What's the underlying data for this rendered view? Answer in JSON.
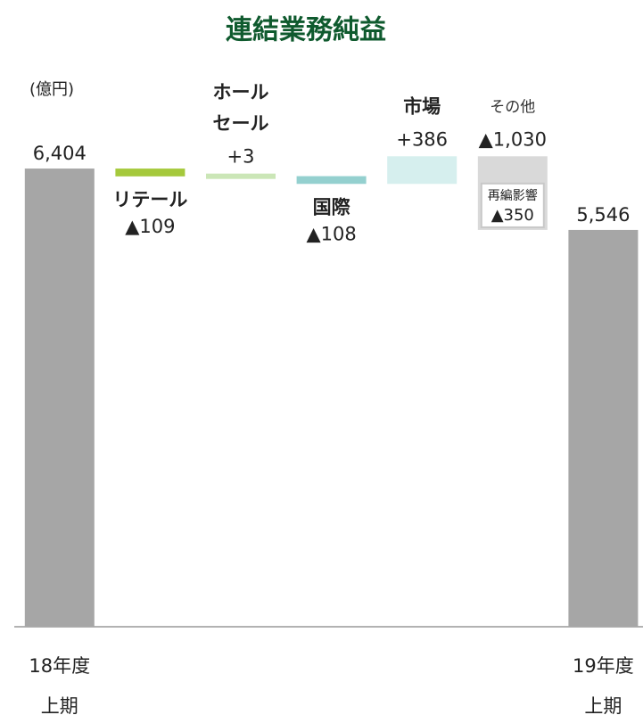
{
  "chart_data": {
    "type": "waterfall",
    "title": "連結業務純益",
    "unit_label": "(億円)",
    "categories": [
      [
        "18年度",
        "上期"
      ],
      [
        "リテール"
      ],
      [
        "ホール",
        "セール"
      ],
      [
        "国際"
      ],
      [
        "市場"
      ],
      [
        "その他"
      ],
      [
        "19年度",
        "上期"
      ]
    ],
    "values": [
      6404,
      -109,
      3,
      -108,
      386,
      -1030,
      5546
    ],
    "value_labels": [
      "6,404",
      "▲109",
      "+3",
      "▲108",
      "+386",
      "▲1,030",
      "5,546"
    ],
    "totals": [
      true,
      false,
      false,
      false,
      false,
      false,
      true
    ],
    "colors": [
      "#a6a6a6",
      "#a5c93c",
      "#cbe6b7",
      "#94d0cf",
      "#d6efee",
      "#d9d9d9",
      "#a6a6a6"
    ],
    "annotations": [
      {
        "category": 5,
        "text": "再編影響",
        "value": -350,
        "label": "▲350"
      }
    ],
    "ylim": [
      0,
      8000
    ]
  }
}
